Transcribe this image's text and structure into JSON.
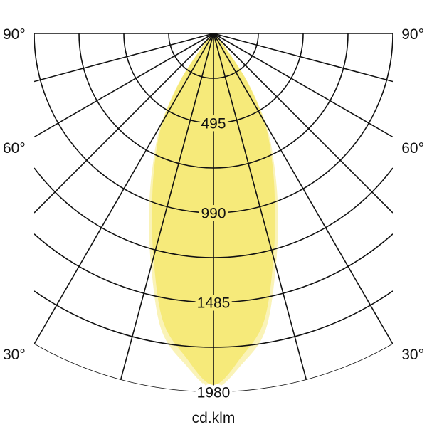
{
  "chart_data": {
    "type": "polar",
    "unit_label": "cd.klm",
    "radial_max": 1980,
    "radial_ticks": [
      495,
      990,
      1485,
      1980
    ],
    "radial_grid_step": 247.5,
    "angle_grid_step_deg": 15,
    "angle_range_deg": [
      -90,
      90
    ],
    "angle_labels": [
      "90°",
      "60°",
      "30°"
    ],
    "angle_label_values": [
      90,
      60,
      30
    ],
    "grid": true,
    "symmetric": true,
    "series": [
      {
        "color": "#faf3b8",
        "angles": [
          0,
          5,
          10,
          15,
          20,
          25,
          30,
          35,
          40,
          45,
          50,
          90
        ],
        "values": [
          1960,
          1830,
          1660,
          1330,
          1040,
          790,
          580,
          335,
          110,
          25,
          0,
          0
        ]
      },
      {
        "color": "#f6ea7a",
        "angles": [
          0,
          5,
          10,
          15,
          20,
          25,
          30,
          35,
          40,
          45,
          50,
          90
        ],
        "values": [
          1940,
          1790,
          1610,
          1280,
          990,
          760,
          560,
          320,
          100,
          20,
          0,
          0
        ]
      }
    ]
  }
}
